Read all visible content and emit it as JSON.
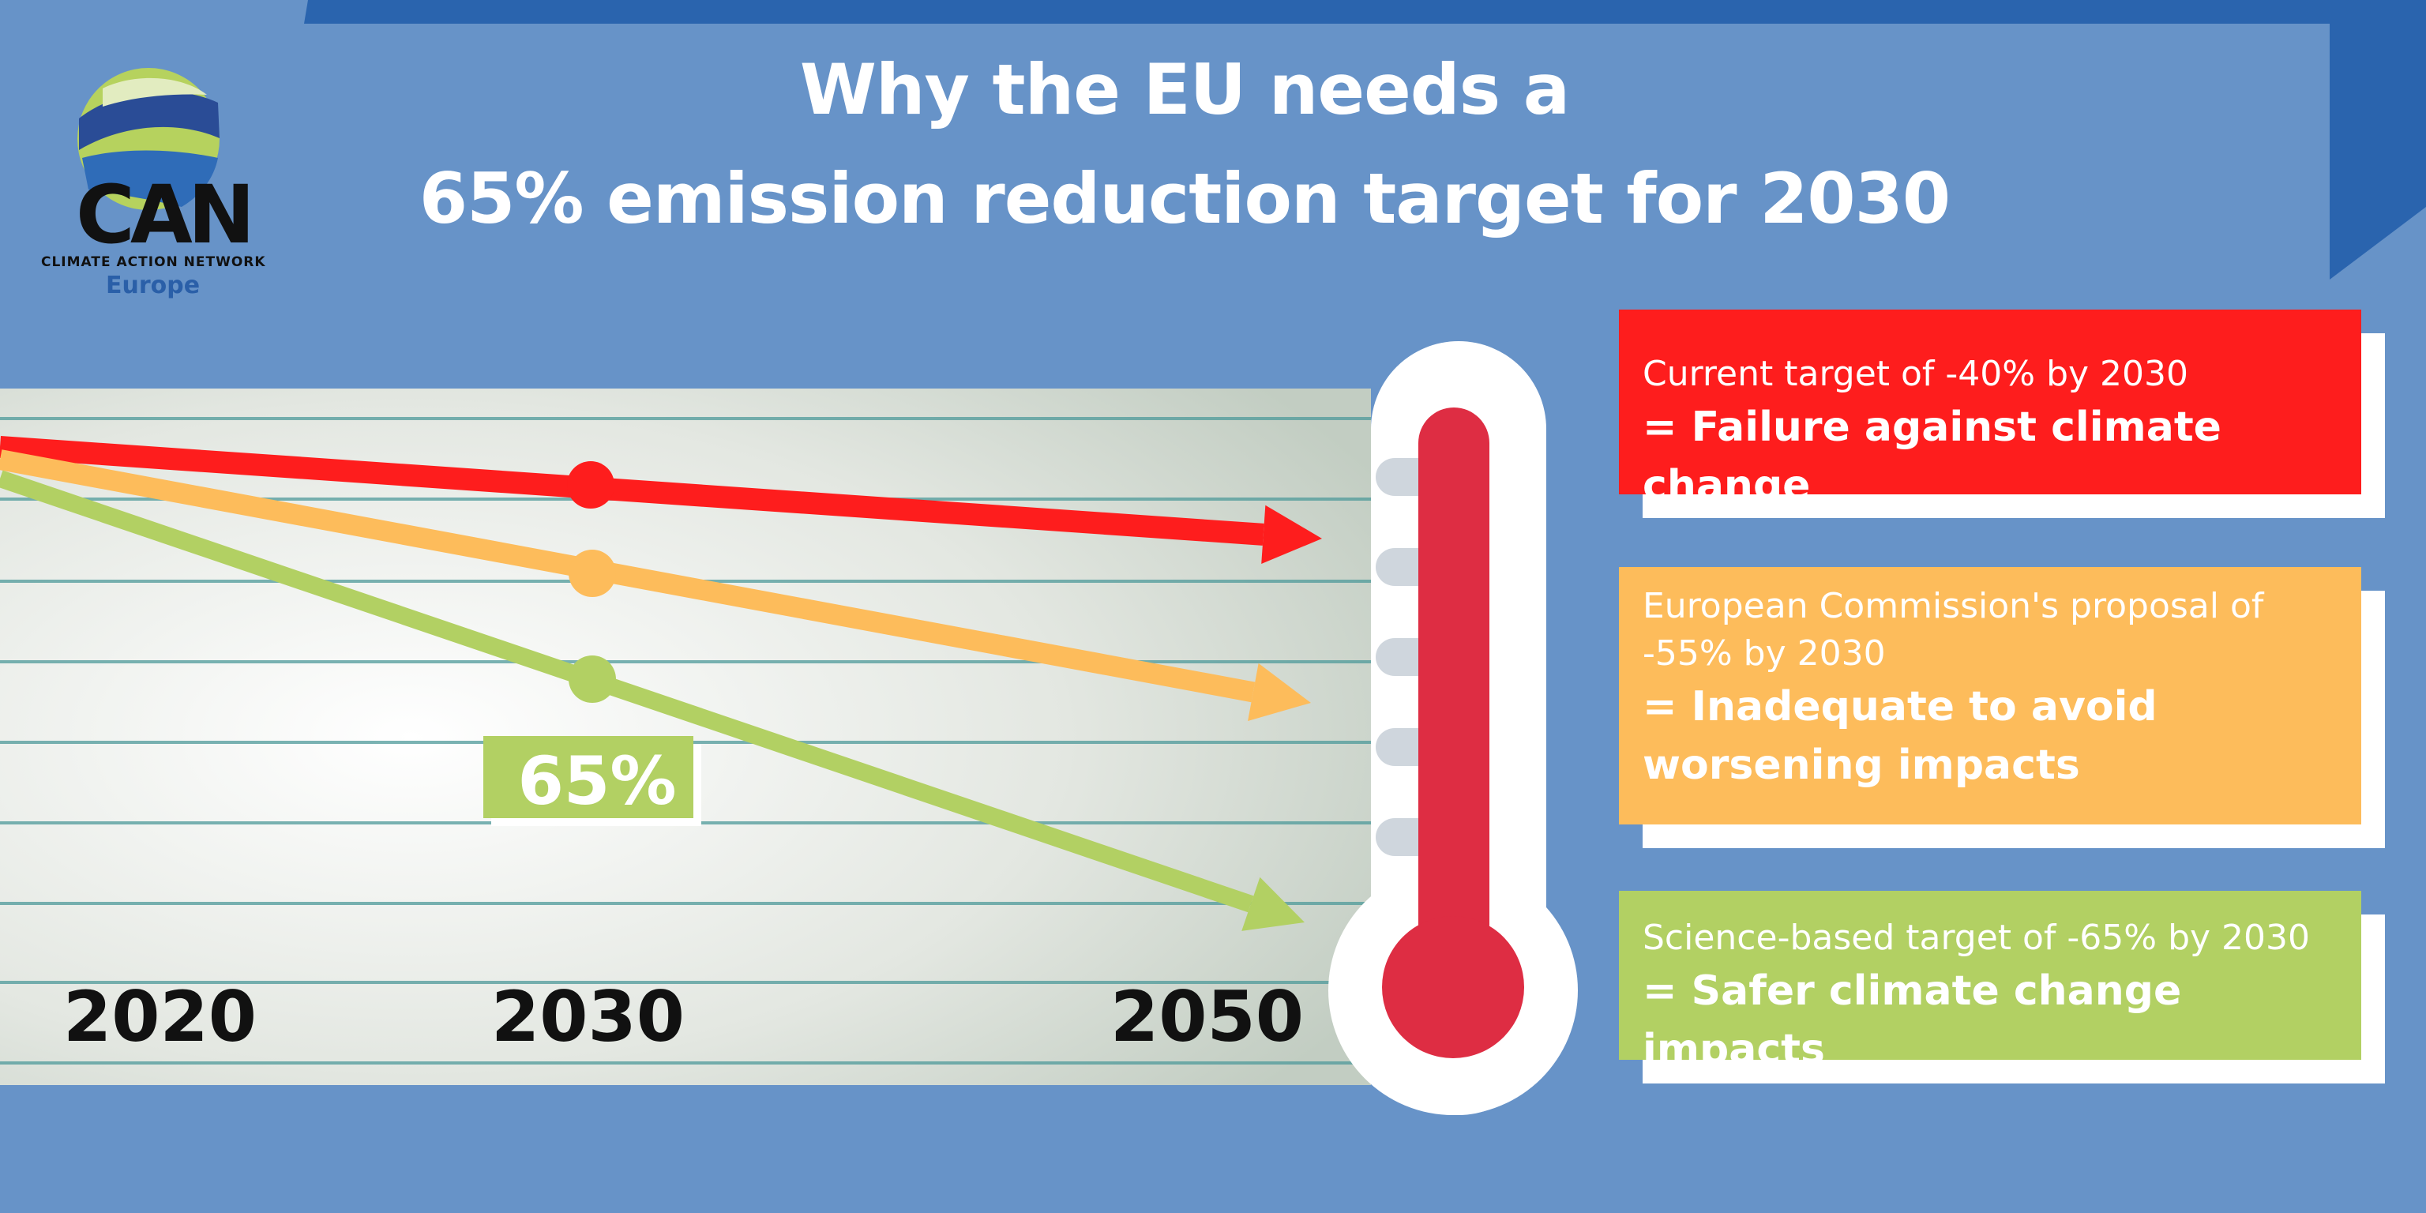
{
  "title": {
    "line1": "Why the EU needs a",
    "line2": "65% emission reduction target for 2030"
  },
  "logo": {
    "abbr": "CAN",
    "name": "CLIMATE ACTION NETWORK",
    "region": "Europe"
  },
  "chart_data": {
    "type": "line",
    "x": [
      "2020",
      "2030",
      "2050"
    ],
    "series": [
      {
        "color": "#fe1d1d",
        "highlighted_year": "2030"
      },
      {
        "color": "#fdbc5b",
        "highlighted_year": "2030"
      },
      {
        "color": "#b2d063",
        "highlighted_year": "2030"
      }
    ],
    "annotations": [
      {
        "text": "65%",
        "color": "#b2d063"
      }
    ]
  },
  "cards": [
    {
      "sub": "Current target of -40% by 2030",
      "main": "= Failure against climate change",
      "color": "#fe1d1d"
    },
    {
      "sub": "European Commission's proposal of -55% by 2030",
      "main": "= Inadequate to avoid worsening impacts",
      "color": "#fdbc5b"
    },
    {
      "sub": "Science-based target of -65% by 2030",
      "main": "= Safer climate change impacts",
      "color": "#b2d063"
    }
  ],
  "colors": {
    "background": "#6793c8",
    "banner": "#2a64ae",
    "thermometer": "#de2d43"
  }
}
